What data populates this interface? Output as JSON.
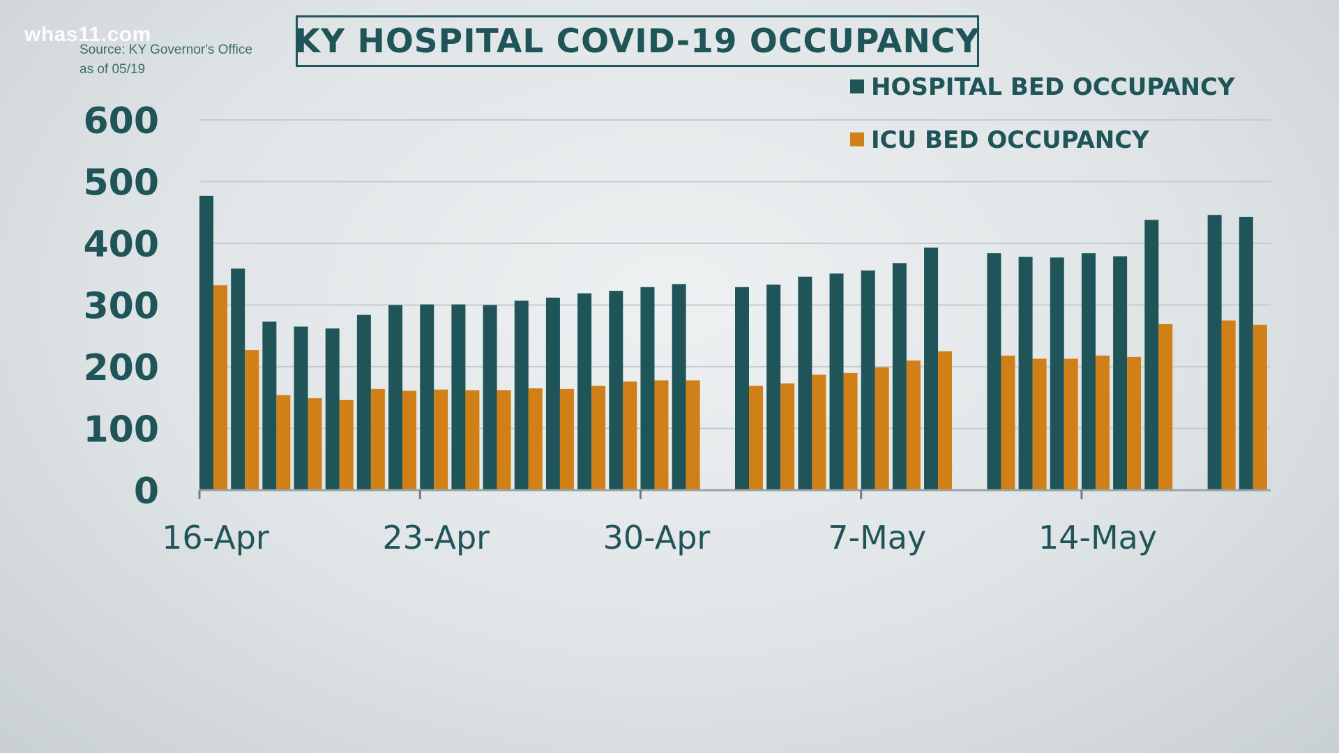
{
  "watermark": "whas11.com",
  "source_line1": "Source: KY Governor's Office",
  "source_line2": "as of 05/19",
  "title": "KY HOSPITAL COVID-19 OCCUPANCY",
  "colors": {
    "hospital": "#1f5458",
    "icu": "#d17f17",
    "text": "#1f5458",
    "grid": "#c4cccf"
  },
  "chart_data": {
    "type": "bar",
    "title": "KY HOSPITAL COVID-19 OCCUPANCY",
    "xlabel": "",
    "ylabel": "",
    "ylim": [
      0,
      600
    ],
    "yticks": [
      0,
      100,
      200,
      300,
      400,
      500,
      600
    ],
    "grid": true,
    "legend_position": "top-right",
    "categories": [
      "16-Apr",
      "17-Apr",
      "18-Apr",
      "19-Apr",
      "20-Apr",
      "21-Apr",
      "22-Apr",
      "23-Apr",
      "24-Apr",
      "25-Apr",
      "26-Apr",
      "27-Apr",
      "28-Apr",
      "29-Apr",
      "30-Apr",
      "1-May",
      "2-May",
      "3-May",
      "4-May",
      "5-May",
      "6-May",
      "7-May",
      "8-May",
      "9-May",
      "10-May",
      "11-May",
      "12-May",
      "13-May",
      "14-May",
      "15-May",
      "16-May",
      "17-May",
      "18-May",
      "19-May"
    ],
    "x_tick_labels": [
      {
        "category": "16-Apr",
        "label": "16-Apr"
      },
      {
        "category": "23-Apr",
        "label": "23-Apr"
      },
      {
        "category": "30-Apr",
        "label": "30-Apr"
      },
      {
        "category": "7-May",
        "label": "7-May"
      },
      {
        "category": "14-May",
        "label": "14-May"
      }
    ],
    "series": [
      {
        "name": "HOSPITAL BED OCCUPANCY",
        "values": [
          477,
          359,
          273,
          265,
          262,
          284,
          300,
          301,
          301,
          300,
          307,
          312,
          319,
          323,
          329,
          334,
          null,
          329,
          333,
          346,
          351,
          356,
          368,
          393,
          null,
          384,
          378,
          377,
          384,
          379,
          438,
          null,
          446,
          443
        ]
      },
      {
        "name": "ICU BED OCCUPANCY",
        "values": [
          332,
          227,
          154,
          149,
          146,
          164,
          161,
          163,
          162,
          162,
          165,
          164,
          169,
          176,
          178,
          178,
          null,
          169,
          173,
          187,
          190,
          199,
          210,
          225,
          null,
          218,
          213,
          213,
          218,
          216,
          269,
          null,
          275,
          268
        ]
      }
    ]
  }
}
